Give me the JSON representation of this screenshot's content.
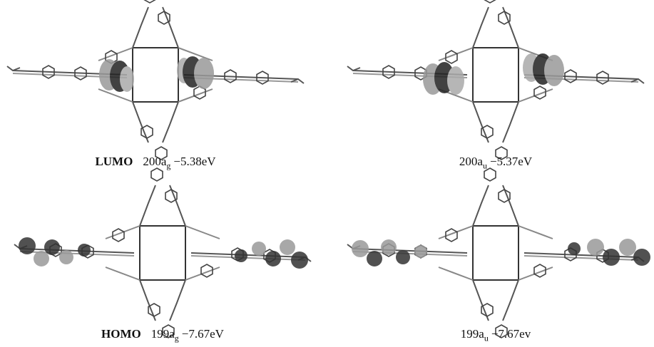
{
  "panels": [
    {
      "orbital": "LUMO",
      "label": "200a",
      "subscript": "g",
      "energy": "−5.38eV"
    },
    {
      "label": "200a",
      "subscript": "u",
      "energy": "−5.37eV"
    },
    {
      "orbital": "HOMO",
      "label": "199a",
      "subscript": "g",
      "energy": "−7.67eV"
    },
    {
      "label": "199a",
      "subscript": "u",
      "energy": "−7.67ev"
    }
  ]
}
